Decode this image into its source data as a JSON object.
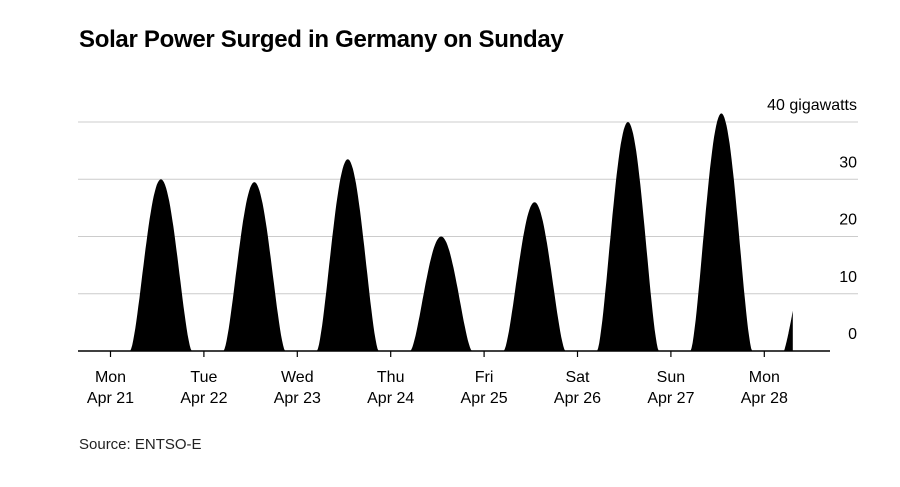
{
  "title": "Solar Power Surged in Germany on Sunday",
  "source": "Source: ENTSO-E",
  "colors": {
    "fill": "#000000",
    "grid": "#cccccc",
    "baseline": "#000000",
    "text": "#000000"
  },
  "chart_data": {
    "type": "area",
    "title": "Solar Power Surged in Germany on Sunday",
    "ylabel": "",
    "y_unit_label": "40 gigawatts",
    "ylim": [
      0,
      40
    ],
    "yticks": [
      {
        "value": 0,
        "label": "0"
      },
      {
        "value": 10,
        "label": "10"
      },
      {
        "value": 20,
        "label": "20"
      },
      {
        "value": 30,
        "label": "30"
      },
      {
        "value": 40,
        "label": "40 gigawatts"
      }
    ],
    "xlim": [
      0,
      7.5
    ],
    "x_unit": "days since Mon Apr 21 00:00",
    "xticks": [
      {
        "value": 0,
        "line1": "Mon",
        "line2": "Apr 21"
      },
      {
        "value": 1,
        "line1": "Tue",
        "line2": "Apr 22"
      },
      {
        "value": 2,
        "line1": "Wed",
        "line2": "Apr 23"
      },
      {
        "value": 3,
        "line1": "Thu",
        "line2": "Apr 24"
      },
      {
        "value": 4,
        "line1": "Fri",
        "line2": "Apr 25"
      },
      {
        "value": 5,
        "line1": "Sat",
        "line2": "Apr 26"
      },
      {
        "value": 6,
        "line1": "Sun",
        "line2": "Apr 27"
      },
      {
        "value": 7,
        "line1": "Mon",
        "line2": "Apr 28"
      }
    ],
    "grid": true,
    "legend": "none",
    "series": [
      {
        "values": [
          {
            "day": "Mon Apr 21",
            "peak": 30
          },
          {
            "day": "Tue Apr 22",
            "peak": 29.5
          },
          {
            "day": "Wed Apr 23",
            "peak": 33.5
          },
          {
            "day": "Thu Apr 24",
            "peak": 20
          },
          {
            "day": "Fri Apr 25",
            "peak": 26
          },
          {
            "day": "Sat Apr 26",
            "peak": 40
          },
          {
            "day": "Sun Apr 27",
            "peak": 41.5
          },
          {
            "day": "Mon Apr 28",
            "peak": 7
          }
        ]
      }
    ]
  }
}
